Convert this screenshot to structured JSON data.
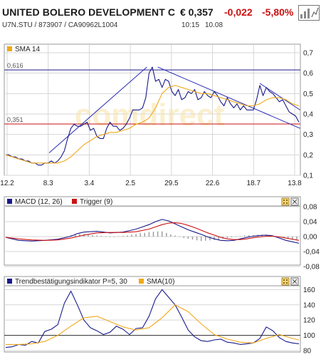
{
  "header": {
    "title": "UNITED BOLERO DEVELOPMENT C",
    "price": "€ 0,357",
    "change": "-0,022",
    "change_pct": "-5,80%",
    "wkn_line": "U7N.STU  /  873907  /  CA90962L1004",
    "time": "10:15",
    "date": "10.08",
    "logo_icon": "exchange-logo-icon",
    "change_color": "#cc1111"
  },
  "chart_data": [
    {
      "type": "line",
      "title": "",
      "legend": [
        {
          "name": "SMA 14",
          "color": "#f0a818"
        }
      ],
      "x_tick_labels": [
        "12.2",
        "8.3",
        "3.4",
        "2.5",
        "29.5",
        "22.6",
        "18.7",
        "13.8"
      ],
      "y_tick_labels": [
        "0,7",
        "0,6",
        "0,5",
        "0,4",
        "0,3",
        "0,2",
        "0,1"
      ],
      "ylim": [
        0.1,
        0.7
      ],
      "grid": true,
      "reference_lines": [
        {
          "label": "0,616",
          "value": 0.616,
          "color": "#1a1a8c"
        },
        {
          "label": "0,351",
          "value": 0.351,
          "color": "#cc1111"
        }
      ],
      "trendlines": [
        {
          "x": [
            40,
            130
          ],
          "y": [
            0.21,
            0.63
          ]
        },
        {
          "x": [
            140,
            271
          ],
          "y": [
            0.63,
            0.33
          ]
        },
        {
          "x": [
            234,
            271
          ],
          "y": [
            0.55,
            0.42
          ]
        }
      ],
      "series": [
        {
          "name": "price",
          "color": "#1a1a8c",
          "x": [
            0,
            3,
            6,
            9,
            12,
            15,
            18,
            21,
            24,
            27,
            30,
            33,
            36,
            39,
            42,
            45,
            48,
            51,
            54,
            57,
            60,
            63,
            66,
            69,
            72,
            75,
            78,
            81,
            84,
            87,
            90,
            93,
            96,
            99,
            102,
            105,
            108,
            111,
            114,
            117,
            120,
            123,
            126,
            129,
            132,
            135,
            138,
            141,
            144,
            147,
            150,
            153,
            156,
            159,
            162,
            165,
            168,
            171,
            174,
            177,
            180,
            183,
            186,
            189,
            192,
            195,
            198,
            201,
            204,
            207,
            210,
            213,
            216,
            219,
            222,
            225,
            228,
            231,
            234,
            237,
            240,
            243,
            246,
            249,
            252,
            255,
            258,
            261,
            264,
            267,
            270
          ],
          "y": [
            0.2,
            0.2,
            0.19,
            0.19,
            0.18,
            0.18,
            0.17,
            0.17,
            0.16,
            0.16,
            0.15,
            0.15,
            0.16,
            0.16,
            0.17,
            0.16,
            0.17,
            0.19,
            0.22,
            0.28,
            0.33,
            0.35,
            0.34,
            0.34,
            0.35,
            0.36,
            0.32,
            0.33,
            0.29,
            0.28,
            0.28,
            0.33,
            0.36,
            0.34,
            0.34,
            0.32,
            0.33,
            0.35,
            0.38,
            0.42,
            0.42,
            0.42,
            0.43,
            0.48,
            0.6,
            0.63,
            0.56,
            0.57,
            0.53,
            0.57,
            0.56,
            0.51,
            0.49,
            0.52,
            0.47,
            0.48,
            0.51,
            0.5,
            0.52,
            0.47,
            0.48,
            0.51,
            0.49,
            0.48,
            0.51,
            0.49,
            0.46,
            0.44,
            0.48,
            0.45,
            0.43,
            0.45,
            0.42,
            0.44,
            0.42,
            0.42,
            0.42,
            0.47,
            0.54,
            0.49,
            0.53,
            0.51,
            0.5,
            0.48,
            0.46,
            0.47,
            0.44,
            0.41,
            0.4,
            0.39,
            0.36
          ]
        },
        {
          "name": "SMA 14",
          "color": "#f0a818",
          "x": [
            0,
            6,
            12,
            18,
            24,
            30,
            36,
            42,
            48,
            54,
            60,
            66,
            72,
            78,
            84,
            90,
            96,
            102,
            108,
            114,
            120,
            126,
            132,
            138,
            144,
            150,
            156,
            162,
            168,
            174,
            180,
            186,
            192,
            198,
            204,
            210,
            216,
            222,
            228,
            234,
            240,
            246,
            252,
            258,
            264,
            270
          ],
          "y": [
            0.2,
            0.19,
            0.18,
            0.17,
            0.16,
            0.16,
            0.16,
            0.16,
            0.16,
            0.17,
            0.19,
            0.22,
            0.25,
            0.27,
            0.29,
            0.3,
            0.31,
            0.31,
            0.32,
            0.33,
            0.35,
            0.36,
            0.38,
            0.43,
            0.5,
            0.53,
            0.54,
            0.53,
            0.52,
            0.51,
            0.5,
            0.5,
            0.49,
            0.48,
            0.47,
            0.46,
            0.45,
            0.44,
            0.44,
            0.45,
            0.47,
            0.48,
            0.48,
            0.47,
            0.45,
            0.44
          ]
        }
      ]
    },
    {
      "type": "line",
      "title": "",
      "legend": [
        {
          "name": "MACD (12, 26)",
          "color": "#1a1a8c"
        },
        {
          "name": "Trigger (9)",
          "color": "#cc1111"
        }
      ],
      "y_tick_labels": [
        "0,08",
        "0,04",
        "0,00",
        "-0,04",
        "-0,08"
      ],
      "ylim": [
        -0.08,
        0.08
      ],
      "grid": true,
      "series": [
        {
          "name": "MACD (12, 26)",
          "color": "#1a1a8c",
          "x": [
            0,
            12,
            24,
            36,
            48,
            60,
            66,
            72,
            84,
            96,
            108,
            114,
            120,
            126,
            132,
            138,
            144,
            150,
            156,
            162,
            168,
            174,
            180,
            186,
            192,
            198,
            204,
            210,
            216,
            222,
            228,
            234,
            240,
            246,
            252,
            258,
            264,
            270
          ],
          "y": [
            -0.002,
            -0.01,
            -0.012,
            -0.01,
            -0.007,
            0.001,
            0.008,
            0.012,
            0.014,
            0.01,
            0.012,
            0.016,
            0.02,
            0.026,
            0.032,
            0.04,
            0.046,
            0.042,
            0.034,
            0.026,
            0.018,
            0.012,
            0.006,
            -0.001,
            -0.006,
            -0.01,
            -0.011,
            -0.01,
            -0.006,
            -0.002,
            0.001,
            0.003,
            0.004,
            0.002,
            -0.004,
            -0.01,
            -0.014,
            -0.018
          ]
        },
        {
          "name": "Trigger (9)",
          "color": "#cc1111",
          "x": [
            0,
            12,
            24,
            36,
            48,
            60,
            72,
            84,
            96,
            108,
            120,
            132,
            138,
            144,
            150,
            156,
            162,
            168,
            174,
            180,
            186,
            192,
            198,
            204,
            210,
            216,
            222,
            228,
            234,
            240,
            246,
            252,
            258,
            264,
            270
          ],
          "y": [
            -0.002,
            -0.006,
            -0.009,
            -0.01,
            -0.009,
            -0.004,
            0.004,
            0.01,
            0.011,
            0.011,
            0.013,
            0.02,
            0.026,
            0.032,
            0.036,
            0.037,
            0.035,
            0.03,
            0.024,
            0.017,
            0.01,
            0.004,
            -0.002,
            -0.006,
            -0.008,
            -0.008,
            -0.006,
            -0.003,
            -0.001,
            0.001,
            0.001,
            -0.001,
            -0.004,
            -0.007,
            -0.01
          ]
        },
        {
          "name": "histogram",
          "color": "#999999",
          "x": [
            60,
            64,
            68,
            72,
            76,
            80,
            84,
            88,
            92,
            96,
            100,
            104,
            108,
            112,
            116,
            120,
            124,
            128,
            132,
            136,
            140,
            144,
            148,
            152,
            156,
            160,
            164,
            168,
            172,
            176,
            180,
            184,
            188,
            192,
            196,
            200,
            204,
            208,
            212,
            216,
            220,
            224,
            228,
            232,
            236,
            240,
            244,
            248,
            252,
            256,
            260,
            264,
            268
          ],
          "y": [
            0.004,
            0.006,
            0.007,
            0.007,
            0.005,
            0.004,
            0.003,
            0.002,
            0.0,
            -0.001,
            0.0,
            0.001,
            0.002,
            0.003,
            0.005,
            0.007,
            0.009,
            0.01,
            0.012,
            0.013,
            0.014,
            0.014,
            0.01,
            0.006,
            0.003,
            -0.001,
            -0.004,
            -0.006,
            -0.008,
            -0.01,
            -0.012,
            -0.011,
            -0.01,
            -0.009,
            -0.008,
            -0.006,
            -0.004,
            -0.002,
            -0.001,
            0.001,
            0.003,
            0.004,
            0.004,
            0.005,
            0.005,
            0.004,
            0.002,
            0.0,
            -0.002,
            -0.004,
            -0.006,
            -0.007,
            -0.008
          ]
        }
      ]
    },
    {
      "type": "line",
      "title": "",
      "legend": [
        {
          "name": "Trendbestätigungsindikator P=5, 30",
          "color": "#1a1a8c"
        },
        {
          "name": "SMA(10)",
          "color": "#f0a818"
        }
      ],
      "y_tick_labels": [
        "160",
        "140",
        "120",
        "100",
        "80"
      ],
      "ylim": [
        80,
        165
      ],
      "grid": true,
      "reference_lines": [
        {
          "label": "100",
          "value": 100,
          "color": "#333333"
        }
      ],
      "series": [
        {
          "name": "Trendbestätigungsindikator P=5, 30",
          "color": "#1a1a8c",
          "x": [
            0,
            6,
            12,
            18,
            24,
            30,
            36,
            42,
            48,
            54,
            60,
            66,
            72,
            78,
            84,
            90,
            96,
            102,
            108,
            114,
            120,
            126,
            132,
            138,
            144,
            150,
            156,
            162,
            168,
            174,
            180,
            186,
            192,
            198,
            204,
            210,
            216,
            222,
            228,
            234,
            240,
            246,
            252,
            258,
            264,
            270
          ],
          "y": [
            84,
            85,
            88,
            87,
            92,
            90,
            105,
            108,
            114,
            142,
            158,
            140,
            120,
            110,
            106,
            101,
            104,
            112,
            108,
            101,
            109,
            110,
            125,
            148,
            160,
            150,
            140,
            124,
            107,
            98,
            93,
            92,
            94,
            95,
            91,
            90,
            88,
            89,
            90,
            96,
            111,
            106,
            97,
            92,
            90,
            89
          ]
        },
        {
          "name": "SMA(10)",
          "color": "#f0a818",
          "x": [
            0,
            12,
            24,
            36,
            48,
            60,
            72,
            84,
            96,
            108,
            120,
            132,
            144,
            156,
            168,
            180,
            192,
            204,
            216,
            228,
            240,
            252,
            264,
            270
          ],
          "y": [
            88,
            88,
            89,
            92,
            100,
            112,
            123,
            125,
            118,
            111,
            107,
            110,
            123,
            140,
            131,
            115,
            101,
            95,
            91,
            90,
            96,
            101,
            96,
            94
          ]
        }
      ]
    }
  ],
  "panels": {
    "main": {
      "close_icon": "close-icon",
      "settings_icon": "settings-icon"
    },
    "macd": {
      "close_icon": "close-icon",
      "settings_icon": "settings-icon"
    },
    "tbi": {
      "close_icon": "close-icon",
      "settings_icon": "settings-icon"
    }
  },
  "watermark": "comdirect",
  "colors": {
    "frame": "#9a9a9a",
    "grid": "#d6d6d6",
    "navy": "#1a1a8c",
    "orange": "#f0a818",
    "red": "#cc1111",
    "panel_bg": "#ffffff"
  }
}
